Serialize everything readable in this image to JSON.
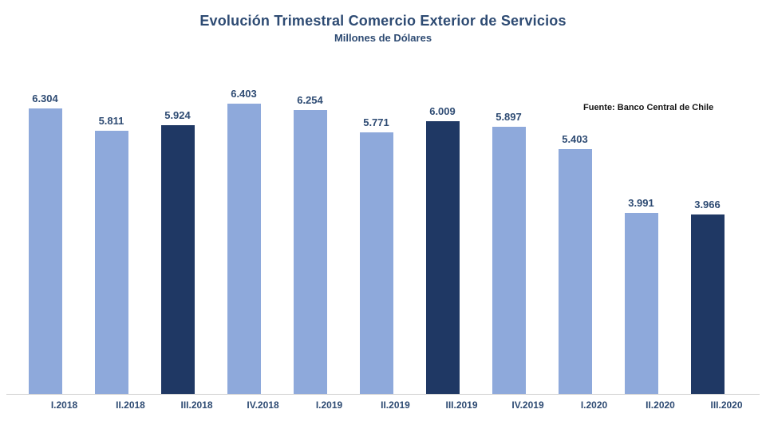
{
  "chart_data": {
    "type": "bar",
    "title": "Evolución Trimestral Comercio Exterior de Servicios",
    "subtitle": "Millones de Dólares",
    "source_note": "Fuente: Banco Central de Chile",
    "categories": [
      "I.2018",
      "II.2018",
      "III.2018",
      "IV.2018",
      "I.2019",
      "II.2019",
      "III.2019",
      "IV.2019",
      "I.2020",
      "II.2020",
      "III.2020"
    ],
    "values": [
      6304,
      5811,
      5924,
      6403,
      6254,
      5771,
      6009,
      5897,
      5403,
      3991,
      3966
    ],
    "value_labels": [
      "6.304",
      "5.811",
      "5.924",
      "6.403",
      "6.254",
      "5.771",
      "6.009",
      "5.897",
      "5.403",
      "3.991",
      "3.966"
    ],
    "highlighted_categories": [
      "III.2018",
      "III.2019",
      "III.2020"
    ],
    "bar_color": "#8EA9DB",
    "highlight_color": "#1F3864",
    "label_color": "#2E4B73",
    "axis_line_color": "#CFCFCF",
    "xlabel": "",
    "ylabel": "",
    "ylim": [
      0,
      7000
    ],
    "grid": false,
    "legend": false,
    "data_labels": true
  }
}
